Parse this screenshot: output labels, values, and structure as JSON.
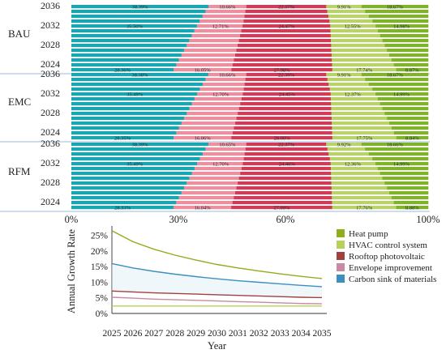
{
  "chart_data": [
    {
      "type": "bar",
      "orientation": "horizontal-stacked",
      "years": [
        "2036",
        "2032",
        "2028",
        "2024"
      ],
      "groups": [
        {
          "name": "BAU",
          "labelled_rows": [
            {
              "year": "2036",
              "values": [
                38.39,
                10.66,
                22.37,
                9.91,
                18.67
              ]
            },
            {
              "year": "2032",
              "values": [
                35.5,
                12.71,
                24.47,
                12.55,
                14.98
              ]
            },
            {
              "year": "2024",
              "values": [
                28.36,
                16.05,
                27.98,
                17.74,
                8.87
              ]
            }
          ],
          "labels": [
            [
              "38.39%",
              "10.66%",
              "22.37%",
              "9.91%",
              "18.67%"
            ],
            [
              "35.50%",
              "12.71%",
              "24.47%",
              "12.55%",
              "14.98%"
            ],
            [
              "28.36%",
              "16.05%",
              "27.98%",
              "17.74%",
              "8.87%"
            ]
          ]
        },
        {
          "name": "EMC",
          "labelled_rows": [
            {
              "year": "2036",
              "values": [
                38.38,
                10.66,
                22.39,
                9.91,
                18.67
              ]
            },
            {
              "year": "2032",
              "values": [
                35.49,
                12.7,
                24.45,
                12.37,
                14.99
              ]
            },
            {
              "year": "2024",
              "values": [
                28.35,
                16.06,
                28.0,
                17.75,
                8.84
              ]
            }
          ],
          "labels": [
            [
              "38.38%",
              "10.66%",
              "22.39%",
              "9.91%",
              "18.67%"
            ],
            [
              "35.49%",
              "12.70%",
              "24.45%",
              "12.37%",
              "14.99%"
            ],
            [
              "28.35%",
              "16.06%",
              "28.00%",
              "17.75%",
              "8.84%"
            ]
          ]
        },
        {
          "name": "RFM",
          "labelled_rows": [
            {
              "year": "2036",
              "values": [
                38.39,
                10.65,
                22.37,
                9.92,
                18.66
              ]
            },
            {
              "year": "2032",
              "values": [
                35.49,
                12.7,
                24.46,
                12.36,
                14.99
              ]
            },
            {
              "year": "2024",
              "values": [
                28.33,
                16.04,
                27.99,
                17.76,
                8.88
              ]
            }
          ],
          "labels": [
            [
              "38.39%",
              "10.65%",
              "22.37%",
              "9.92%",
              "18.66%"
            ],
            [
              "35.49%",
              "12.70%",
              "24.46%",
              "12.36%",
              "14.99%"
            ],
            [
              "28.33%",
              "16.04%",
              "27.99%",
              "17.76%",
              "8.88%"
            ]
          ]
        }
      ],
      "segment_colors": [
        "#19a6b0",
        "#ec8f9f",
        "#cf3c58",
        "#b9d26a",
        "#80b32b"
      ],
      "xticks": [
        "0%",
        "30%",
        "60%",
        "100%"
      ],
      "xlim": [
        0,
        100
      ]
    },
    {
      "type": "line",
      "x": [
        2025,
        2026,
        2027,
        2028,
        2029,
        2030,
        2031,
        2032,
        2033,
        2034,
        2035
      ],
      "xticks": [
        "2025",
        "2026",
        "2027",
        "2028",
        "2029",
        "2030",
        "2031",
        "2032",
        "2033",
        "2034",
        "2035"
      ],
      "yticks": [
        "25%",
        "20%",
        "15%",
        "10%",
        "5%",
        "0%"
      ],
      "ylim": [
        0,
        27
      ],
      "xlabel": "Year",
      "ylabel": "Annual Growth Rate",
      "legend_position": "right",
      "series": [
        {
          "name": "Heat pump",
          "color": "#8fae1b",
          "values": [
            26.5,
            23.0,
            20.6,
            18.7,
            17.1,
            15.7,
            14.6,
            13.6,
            12.7,
            11.9,
            11.2
          ]
        },
        {
          "name": "HVAC control system",
          "color": "#b7d05a",
          "values": [
            2.4,
            2.4,
            2.4,
            2.4,
            2.4,
            2.4,
            2.4,
            2.4,
            2.4,
            2.4,
            2.4
          ]
        },
        {
          "name": "Rooftop photovoltaic",
          "color": "#a0413e",
          "values": [
            7.2,
            6.9,
            6.6,
            6.4,
            6.2,
            6.0,
            5.8,
            5.6,
            5.4,
            5.2,
            5.1
          ]
        },
        {
          "name": "Envelope improvement",
          "color": "#c88aa2",
          "values": [
            5.2,
            4.9,
            4.6,
            4.4,
            4.2,
            4.0,
            3.8,
            3.6,
            3.4,
            3.2,
            3.1
          ]
        },
        {
          "name": "Carbon sink of materials",
          "color": "#3d8fc0",
          "values": [
            16.0,
            14.6,
            13.5,
            12.6,
            11.8,
            11.1,
            10.5,
            10.0,
            9.5,
            9.0,
            8.6
          ]
        }
      ]
    }
  ]
}
